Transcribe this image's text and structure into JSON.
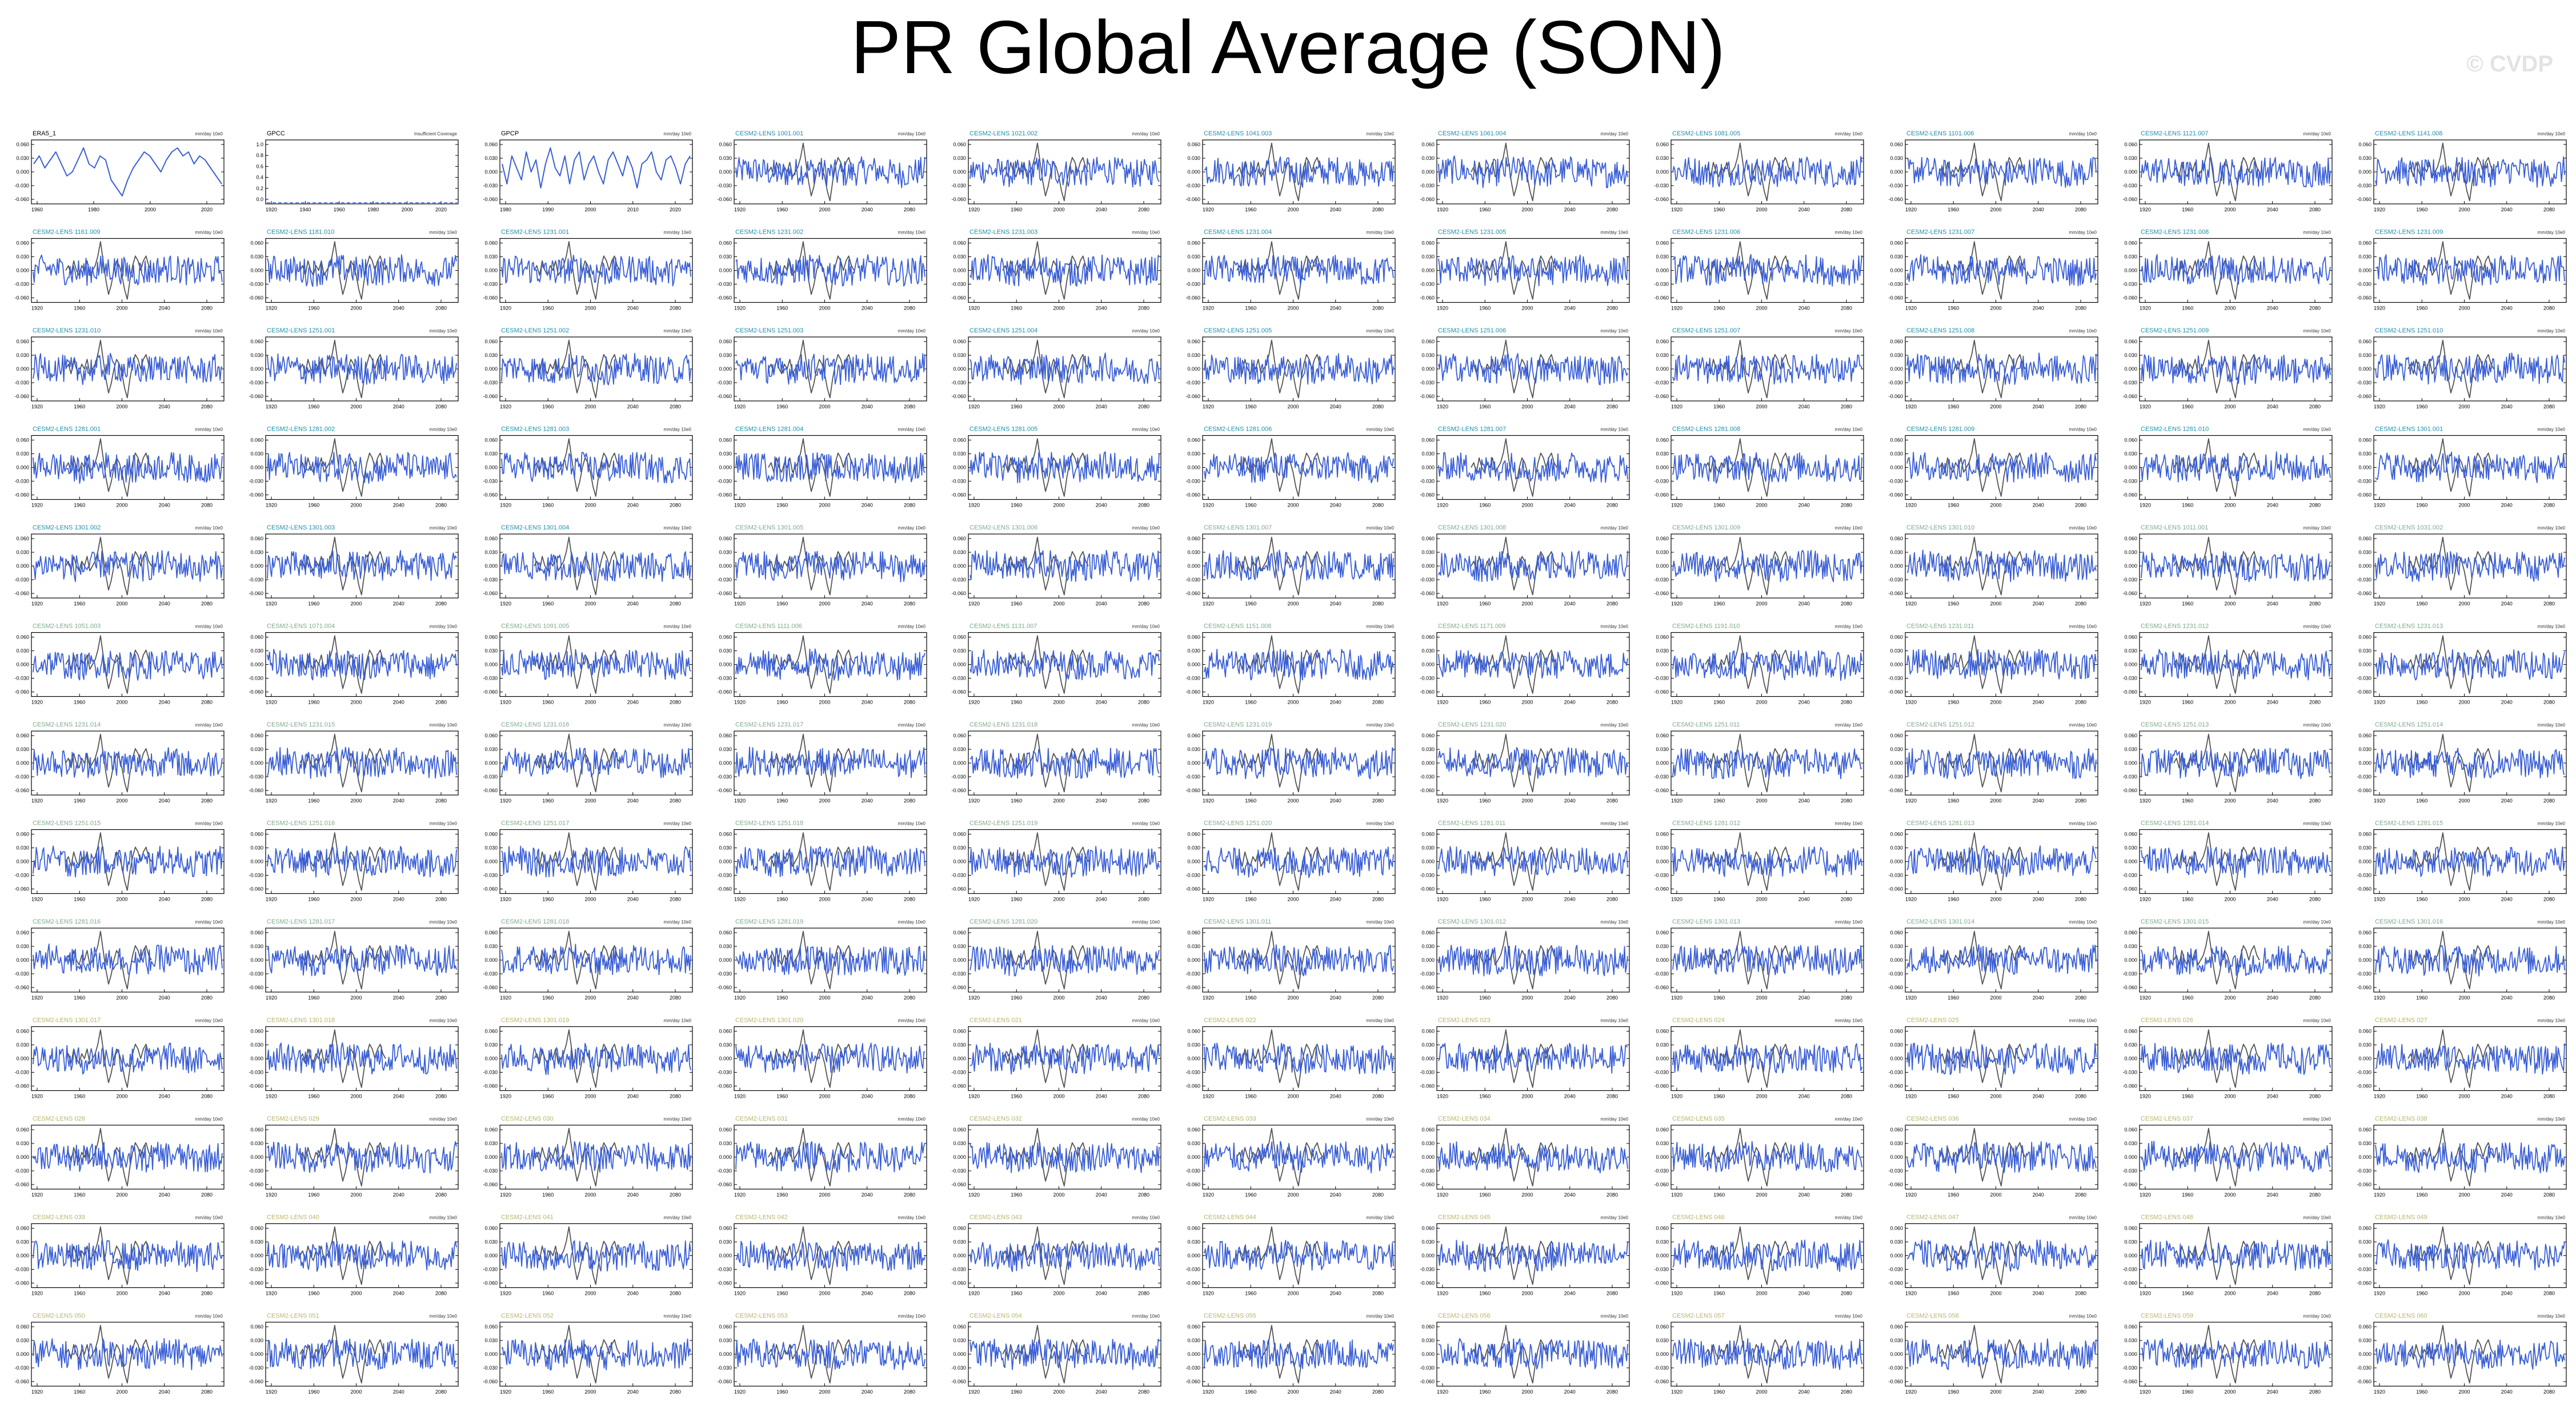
{
  "title": "PR Global Average (SON)",
  "watermark": "© CVDP",
  "colors": {
    "obs_line": "#555555",
    "member_line": "#3a5fd6",
    "title_obs": "#000000",
    "title_a": "#1f8fa8",
    "title_b": "#7fa98b",
    "title_c": "#b9b46a"
  },
  "chart_data": {
    "type": "line",
    "units": "mm/day 10e0",
    "ylim": [
      -0.08,
      0.08
    ],
    "yticks": [
      "0.060",
      "0.030",
      "0.000",
      "-0.030",
      "-0.060"
    ],
    "xticks": [
      "1920",
      "1960",
      "2000",
      "2040",
      "2080"
    ],
    "obs_panels": [
      {
        "name": "ERA5_1",
        "units": "mm/day 10e0",
        "xticks": [
          "1960",
          "1980",
          "2000",
          "2020"
        ],
        "yticks": [
          "0.060",
          "0.030",
          "0.000",
          "-0.030",
          "-0.060"
        ],
        "values": [
          0.02,
          0.04,
          0.01,
          0.03,
          0.05,
          0.02,
          -0.01,
          0.0,
          0.03,
          0.06,
          0.02,
          0.01,
          0.04,
          0.03,
          -0.02,
          -0.04,
          -0.06,
          -0.02,
          0.01,
          0.03,
          0.05,
          0.04,
          0.02,
          0.0,
          0.03,
          0.05,
          0.06,
          0.04,
          0.05,
          0.02,
          0.04,
          0.03,
          0.01,
          -0.01,
          -0.03
        ]
      },
      {
        "name": "GPCC",
        "units": "Insufficient Coverage",
        "xticks": [
          "1920",
          "1940",
          "1960",
          "1980",
          "2000",
          "2020"
        ],
        "yticks": [
          "1.0",
          "0.8",
          "0.6",
          "0.4",
          "0.2",
          "0.0"
        ],
        "values": []
      },
      {
        "name": "GPCP",
        "units": "mm/day 10e0",
        "xticks": [
          "1980",
          "1990",
          "2000",
          "2010",
          "2020"
        ],
        "yticks": [
          "0.060",
          "0.030",
          "0.000",
          "-0.030",
          "-0.060"
        ],
        "values": [
          0.02,
          -0.03,
          0.04,
          0.01,
          -0.02,
          0.05,
          0.0,
          0.03,
          -0.04,
          0.02,
          0.06,
          0.01,
          -0.01,
          0.04,
          -0.03,
          0.03,
          0.05,
          -0.02,
          0.02,
          0.04,
          0.0,
          -0.03,
          0.03,
          0.05,
          0.02,
          -0.01,
          0.04,
          0.01,
          -0.04,
          0.02,
          0.03,
          0.05,
          0.0,
          -0.02,
          0.03,
          0.04,
          0.01,
          -0.03,
          0.02,
          0.04
        ]
      }
    ],
    "member_titles": [
      "CESM2-LENS 1001.001",
      "CESM2-LENS 1021.002",
      "CESM2-LENS 1041.003",
      "CESM2-LENS 1061.004",
      "CESM2-LENS 1081.005",
      "CESM2-LENS 1101.006",
      "CESM2-LENS 1121.007",
      "CESM2-LENS 1141.008",
      "CESM2-LENS 1161.009",
      "CESM2-LENS 1181.010",
      "CESM2-LENS 1231.001",
      "CESM2-LENS 1231.002",
      "CESM2-LENS 1231.003",
      "CESM2-LENS 1231.004",
      "CESM2-LENS 1231.005",
      "CESM2-LENS 1231.006",
      "CESM2-LENS 1231.007",
      "CESM2-LENS 1231.008",
      "CESM2-LENS 1231.009",
      "CESM2-LENS 1231.010",
      "CESM2-LENS 1251.001",
      "CESM2-LENS 1251.002",
      "CESM2-LENS 1251.003",
      "CESM2-LENS 1251.004",
      "CESM2-LENS 1251.005",
      "CESM2-LENS 1251.006",
      "CESM2-LENS 1251.007",
      "CESM2-LENS 1251.008",
      "CESM2-LENS 1251.009",
      "CESM2-LENS 1251.010",
      "CESM2-LENS 1281.001",
      "CESM2-LENS 1281.002",
      "CESM2-LENS 1281.003",
      "CESM2-LENS 1281.004",
      "CESM2-LENS 1281.005",
      "CESM2-LENS 1281.006",
      "CESM2-LENS 1281.007",
      "CESM2-LENS 1281.008",
      "CESM2-LENS 1281.009",
      "CESM2-LENS 1281.010",
      "CESM2-LENS 1301.001",
      "CESM2-LENS 1301.002",
      "CESM2-LENS 1301.003",
      "CESM2-LENS 1301.004",
      "CESM2-LENS 1301.005",
      "CESM2-LENS 1301.006",
      "CESM2-LENS 1301.007",
      "CESM2-LENS 1301.008",
      "CESM2-LENS 1301.009",
      "CESM2-LENS 1301.010",
      "CESM2-LENS 1011.001",
      "CESM2-LENS 1031.002",
      "CESM2-LENS 1051.003",
      "CESM2-LENS 1071.004",
      "CESM2-LENS 1091.005",
      "CESM2-LENS 1111.006",
      "CESM2-LENS 1131.007",
      "CESM2-LENS 1151.008",
      "CESM2-LENS 1171.009",
      "CESM2-LENS 1191.010",
      "CESM2-LENS 1231.011",
      "CESM2-LENS 1231.012",
      "CESM2-LENS 1231.013",
      "CESM2-LENS 1231.014",
      "CESM2-LENS 1231.015",
      "CESM2-LENS 1231.016",
      "CESM2-LENS 1231.017",
      "CESM2-LENS 1231.018",
      "CESM2-LENS 1231.019",
      "CESM2-LENS 1231.020",
      "CESM2-LENS 1251.011",
      "CESM2-LENS 1251.012",
      "CESM2-LENS 1251.013",
      "CESM2-LENS 1251.014",
      "CESM2-LENS 1251.015",
      "CESM2-LENS 1251.016",
      "CESM2-LENS 1251.017",
      "CESM2-LENS 1251.018",
      "CESM2-LENS 1251.019",
      "CESM2-LENS 1251.020",
      "CESM2-LENS 1281.011",
      "CESM2-LENS 1281.012",
      "CESM2-LENS 1281.013",
      "CESM2-LENS 1281.014",
      "CESM2-LENS 1281.015",
      "CESM2-LENS 1281.016",
      "CESM2-LENS 1281.017",
      "CESM2-LENS 1281.018",
      "CESM2-LENS 1281.019",
      "CESM2-LENS 1281.020",
      "CESM2-LENS 1301.011",
      "CESM2-LENS 1301.012",
      "CESM2-LENS 1301.013",
      "CESM2-LENS 1301.014",
      "CESM2-LENS 1301.015",
      "CESM2-LENS 1301.016",
      "CESM2-LENS 1301.017",
      "CESM2-LENS 1301.018",
      "CESM2-LENS 1301.019",
      "CESM2-LENS 1301.020",
      "CESM2-LENS 021",
      "CESM2-LENS 022",
      "CESM2-LENS 023",
      "CESM2-LENS 024",
      "CESM2-LENS 025",
      "CESM2-LENS 026",
      "CESM2-LENS 027",
      "CESM2-LENS 028",
      "CESM2-LENS 029",
      "CESM2-LENS 030",
      "CESM2-LENS 031",
      "CESM2-LENS 032",
      "CESM2-LENS 033",
      "CESM2-LENS 034",
      "CESM2-LENS 035",
      "CESM2-LENS 036",
      "CESM2-LENS 037",
      "CESM2-LENS 038",
      "CESM2-LENS 039",
      "CESM2-LENS 040",
      "CESM2-LENS 041",
      "CESM2-LENS 042",
      "CESM2-LENS 043",
      "CESM2-LENS 044",
      "CESM2-LENS 045",
      "CESM2-LENS 046",
      "CESM2-LENS 047",
      "CESM2-LENS 048",
      "CESM2-LENS 049",
      "CESM2-LENS 050",
      "CESM2-LENS 051",
      "CESM2-LENS 052",
      "CESM2-LENS 053",
      "CESM2-LENS 054",
      "CESM2-LENS 055",
      "CESM2-LENS 056",
      "CESM2-LENS 057",
      "CESM2-LENS 058",
      "CESM2-LENS 059",
      "CESM2-LENS 060"
    ],
    "member_units": "mm/day 10e0",
    "obs_overlay_profile": [
      0.0,
      0.01,
      -0.01,
      0.02,
      0.0,
      -0.01,
      0.01,
      0.0,
      0.02,
      -0.01,
      0.0,
      0.01,
      0.03,
      0.06,
      0.02,
      -0.02,
      -0.05,
      -0.03,
      0.0,
      0.02,
      0.01,
      -0.01,
      -0.04,
      -0.06,
      -0.02,
      0.01,
      0.03,
      0.02,
      0.0,
      0.02,
      0.03,
      0.01,
      0.0
    ]
  }
}
